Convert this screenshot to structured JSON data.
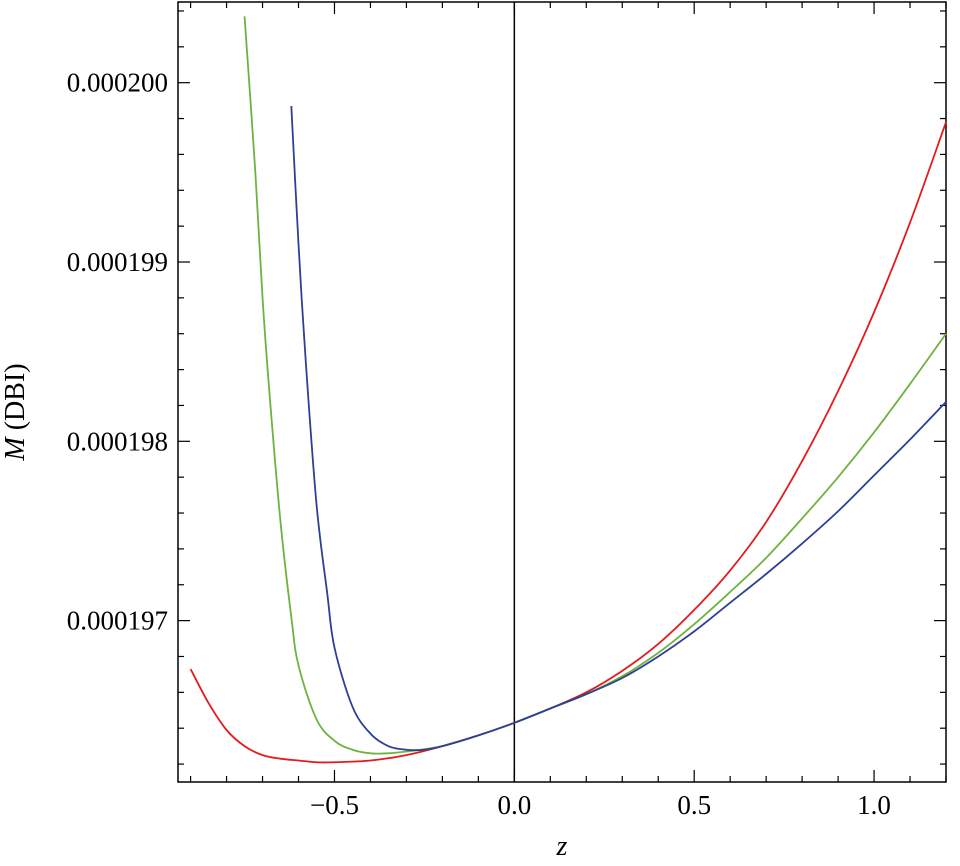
{
  "chart_data": {
    "type": "line",
    "title": "",
    "xlabel": "z",
    "ylabel": "M (DBI)",
    "xlim": [
      -0.935,
      1.2
    ],
    "ylim": [
      0.0001961,
      0.00020045
    ],
    "x_major_ticks": [
      -0.5,
      0.0,
      0.5,
      1.0
    ],
    "x_tick_labels": [
      "−0.5",
      "0.0",
      "0.5",
      "1.0"
    ],
    "y_major_ticks": [
      0.000197,
      0.000198,
      0.000199,
      0.0002
    ],
    "y_tick_labels": [
      "0.000197",
      "0.000198",
      "0.000199",
      "0.000200"
    ],
    "vertical_reference_line_x": 0.0,
    "grid": false,
    "legend": "none",
    "series": [
      {
        "color": "#e41a1c",
        "x": [
          -0.9,
          -0.85,
          -0.8,
          -0.75,
          -0.7,
          -0.65,
          -0.6,
          -0.55,
          -0.5,
          -0.4,
          -0.3,
          -0.2,
          -0.1,
          0.0,
          0.1,
          0.2,
          0.3,
          0.4,
          0.5,
          0.6,
          0.7,
          0.8,
          0.9,
          1.0,
          1.1,
          1.2
        ],
        "y": [
          0.00019673,
          0.00019654,
          0.00019639,
          0.0001963,
          0.00019625,
          0.00019623,
          0.00019622,
          0.00019621,
          0.00019621,
          0.00019622,
          0.00019625,
          0.0001963,
          0.00019636,
          0.00019643,
          0.00019651,
          0.0001966,
          0.00019672,
          0.00019687,
          0.00019706,
          0.00019728,
          0.00019755,
          0.00019789,
          0.00019828,
          0.00019872,
          0.00019922,
          0.00019978
        ]
      },
      {
        "color": "#6db33f",
        "x": [
          -0.75,
          -0.72,
          -0.7,
          -0.68,
          -0.65,
          -0.62,
          -0.6,
          -0.55,
          -0.5,
          -0.45,
          -0.4,
          -0.35,
          -0.3,
          -0.2,
          -0.1,
          0.0,
          0.1,
          0.2,
          0.3,
          0.4,
          0.5,
          0.6,
          0.7,
          0.8,
          0.9,
          1.0,
          1.1,
          1.2
        ],
        "y": [
          0.00020037,
          0.0001995,
          0.0001988,
          0.00019825,
          0.00019755,
          0.00019702,
          0.00019675,
          0.00019645,
          0.00019633,
          0.00019628,
          0.00019626,
          0.00019626,
          0.00019627,
          0.0001963,
          0.00019636,
          0.00019643,
          0.00019651,
          0.00019659,
          0.00019669,
          0.00019682,
          0.00019698,
          0.00019716,
          0.00019735,
          0.00019757,
          0.0001978,
          0.00019805,
          0.00019832,
          0.0001986
        ]
      },
      {
        "color": "#2e3f96",
        "x": [
          -0.62,
          -0.6,
          -0.58,
          -0.55,
          -0.52,
          -0.5,
          -0.45,
          -0.4,
          -0.35,
          -0.3,
          -0.25,
          -0.2,
          -0.1,
          0.0,
          0.1,
          0.2,
          0.3,
          0.4,
          0.5,
          0.6,
          0.7,
          0.8,
          0.9,
          1.0,
          1.1,
          1.2
        ],
        "y": [
          0.00019987,
          0.0001991,
          0.00019845,
          0.00019765,
          0.00019715,
          0.00019685,
          0.00019652,
          0.00019637,
          0.0001963,
          0.00019628,
          0.00019628,
          0.0001963,
          0.00019636,
          0.00019643,
          0.00019651,
          0.00019659,
          0.00019668,
          0.0001968,
          0.00019694,
          0.0001971,
          0.00019726,
          0.00019743,
          0.00019761,
          0.00019781,
          0.00019801,
          0.00019822
        ]
      }
    ]
  }
}
